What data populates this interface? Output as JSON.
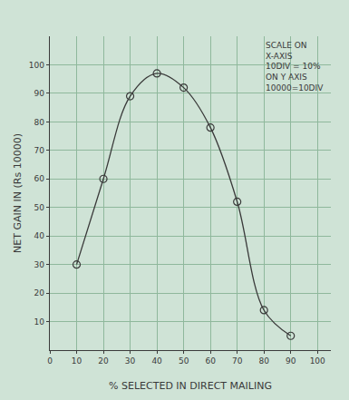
{
  "chart_data": {
    "type": "line",
    "x_label": "% SELECTED IN DIRECT MAILING",
    "y_label": "NET GAIN IN (Rs 10000)",
    "annotations": [
      {
        "lines": [
          "SCALE ON",
          "X-AXIS",
          "10DIV = 10%",
          "ON Y AXIS",
          "10000=10DIV"
        ]
      }
    ],
    "x": [
      10,
      20,
      30,
      40,
      50,
      60,
      70,
      80,
      90
    ],
    "values": [
      30,
      60,
      89,
      97,
      92,
      78,
      52,
      14,
      5
    ],
    "color": "#3a3a3a",
    "marker": "circle-open",
    "line_style": "solid",
    "xlim": [
      0,
      105
    ],
    "xticks": [
      0,
      10,
      20,
      30,
      40,
      50,
      60,
      70,
      80,
      90,
      100
    ],
    "ylim": [
      0,
      110
    ],
    "yticks": [
      10,
      20,
      30,
      40,
      50,
      60,
      70,
      80,
      90,
      100
    ],
    "grid": true
  }
}
